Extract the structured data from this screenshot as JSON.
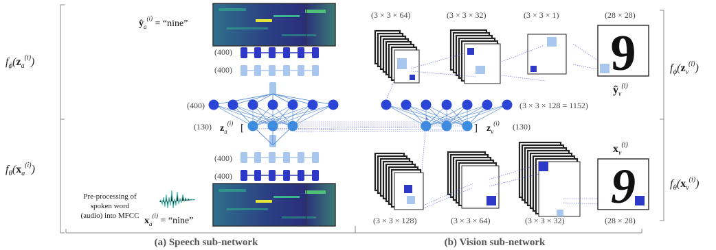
{
  "colors": {
    "node_blue": "#2b46d6",
    "hidden_blue": "#3d8ee0",
    "light_blue": "#a9c6ee",
    "rnn_dark": "#2e38c6",
    "mfcc_low": "#2b2f7a",
    "mfcc_mid": "#2fa08c",
    "mfcc_high": "#e6e337",
    "waveform": "#3bb3a6",
    "edge": "#3f7fd9",
    "dotted": "#5561d8",
    "bracket": "#888888"
  },
  "speech": {
    "f_phi": "f_ϕ(z_a^(i))",
    "f_theta": "f_θ(x_a^(i))",
    "y_hat_label": "ŷ_a^(i) = “nine”",
    "x_label": "x_a^(i) = “nine”",
    "z_label": "z_a^(i)",
    "rnn_top_dim": "(400)",
    "rnn_top_dim2": "(400)",
    "rnn_bot_dim": "(400)",
    "rnn_bot_dim2": "(400)",
    "dense_dim": "(400)",
    "latent_dim": "(130)",
    "preprocess_lines": [
      "Pre-processing of",
      "spoken word",
      "(audio) into MFCC"
    ],
    "caption": "(a) Speech sub-network"
  },
  "vision": {
    "f_phi": "f_ϕ(z_v^(i))",
    "f_theta": "f_θ(x_v^(i))",
    "z_label": "z_v^(i)",
    "latent_dim": "(130)",
    "dense_dim": "(3 × 3 × 128 = 1152)",
    "decoder_dims": [
      "(3 × 3 × 64)",
      "(3 × 3 × 32)",
      "(3 × 3 × 1)",
      "(28 × 28)"
    ],
    "encoder_dims": [
      "(3 × 3 × 128)",
      "(3 × 3 × 64)",
      "(3 × 3 × 32)",
      "(28 × 28)"
    ],
    "y_hat_label": "ŷ_v^(i)",
    "x_label": "x_v^(i)",
    "digit": "9",
    "caption": "(b) Vision sub-network"
  }
}
